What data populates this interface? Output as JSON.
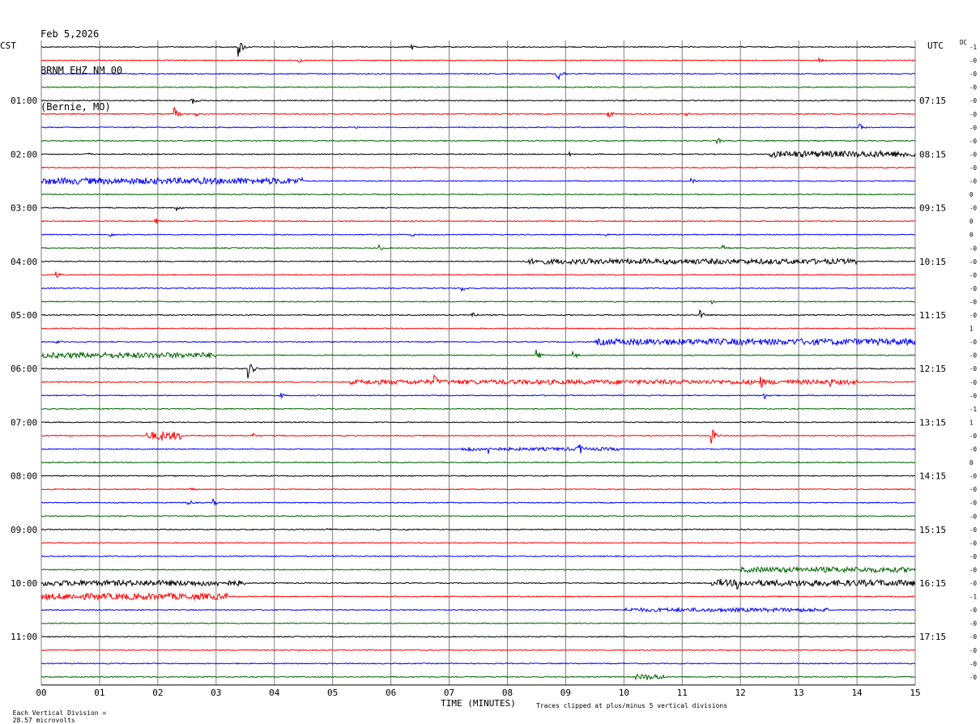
{
  "header": {
    "date": "Feb 5,2026",
    "station": "BRNM EHZ NM 00",
    "location": "(Bernie, MO)"
  },
  "axes": {
    "left_tz": "CST",
    "right_tz": "UTC",
    "dc_label": "DC",
    "xlabel": "TIME (MINUTES)",
    "x_ticks": [
      "00",
      "01",
      "02",
      "03",
      "04",
      "05",
      "06",
      "07",
      "08",
      "09",
      "10",
      "11",
      "12",
      "13",
      "14",
      "15"
    ],
    "left_hours": [
      "01:00",
      "02:00",
      "03:00",
      "04:00",
      "05:00",
      "06:00",
      "07:00",
      "08:00",
      "09:00",
      "10:00",
      "11:00"
    ],
    "right_hours": [
      "07:15",
      "08:15",
      "09:15",
      "10:15",
      "11:15",
      "12:15",
      "13:15",
      "14:15",
      "15:15",
      "16:15",
      "17:15"
    ]
  },
  "footer": {
    "scale_prefix": "Each Vertical Division =",
    "scale_value": "28.57 microvolts",
    "clip_note": "Traces clipped at plus/minus 5 vertical divisions"
  },
  "colors": {
    "black": "#000000",
    "red": "#ff0000",
    "blue": "#0000ff",
    "green": "#006400",
    "grid": "#808080"
  },
  "chart_data": {
    "type": "line",
    "subtype": "helicorder",
    "x_range_minutes": [
      0,
      15
    ],
    "trace_count": 48,
    "minutes_per_trace": 15,
    "color_cycle": [
      "black",
      "red",
      "blue",
      "green"
    ],
    "dc_offsets": [
      "-1",
      "-0",
      "-0",
      "-0",
      "-0",
      "-0",
      "-0",
      "-0",
      "-0",
      "-0",
      "-0",
      "0",
      "-0",
      "0",
      "0",
      "-0",
      "-0",
      "-0",
      "-0",
      "-0",
      "-0",
      "1",
      "-0",
      "-0",
      "-0",
      "-0",
      "-0",
      "-1",
      "1",
      "-0",
      "-0",
      "0",
      "-0",
      "-0",
      "-0",
      "-0",
      "-0",
      "-0",
      "-0",
      "-0",
      "-0",
      "-1",
      "-0",
      "-0",
      "-0",
      "-0",
      "-0",
      "-0"
    ],
    "events": [
      {
        "trace": 0,
        "minute": 3.38,
        "amp": 6
      },
      {
        "trace": 0,
        "minute": 6.35,
        "amp": 2
      },
      {
        "trace": 1,
        "minute": 4.42,
        "amp": 2
      },
      {
        "trace": 1,
        "minute": 13.35,
        "amp": 1.5
      },
      {
        "trace": 2,
        "minute": 8.85,
        "amp": 6
      },
      {
        "trace": 4,
        "minute": 2.58,
        "amp": 3
      },
      {
        "trace": 5,
        "minute": 2.28,
        "amp": 4
      },
      {
        "trace": 5,
        "minute": 2.65,
        "amp": 1.5
      },
      {
        "trace": 5,
        "minute": 9.72,
        "amp": 3
      },
      {
        "trace": 5,
        "minute": 11.05,
        "amp": 1.5
      },
      {
        "trace": 6,
        "minute": 5.38,
        "amp": 1
      },
      {
        "trace": 6,
        "minute": 14.05,
        "amp": 2
      },
      {
        "trace": 7,
        "minute": 11.6,
        "amp": 2
      },
      {
        "trace": 8,
        "minute": 0.75,
        "amp": 2
      },
      {
        "trace": 8,
        "minute": 9.05,
        "amp": 1.5
      },
      {
        "trace": 10,
        "minute": 11.15,
        "amp": 2
      },
      {
        "trace": 12,
        "minute": 2.33,
        "amp": 2
      },
      {
        "trace": 13,
        "minute": 1.95,
        "amp": 2.5
      },
      {
        "trace": 13,
        "minute": 6.35,
        "amp": 1
      },
      {
        "trace": 14,
        "minute": 1.17,
        "amp": 2
      },
      {
        "trace": 14,
        "minute": 6.35,
        "amp": 1.5
      },
      {
        "trace": 14,
        "minute": 9.65,
        "amp": 1.5
      },
      {
        "trace": 15,
        "minute": 5.78,
        "amp": 2.5
      },
      {
        "trace": 15,
        "minute": 11.7,
        "amp": 2
      },
      {
        "trace": 17,
        "minute": 0.25,
        "amp": 2
      },
      {
        "trace": 18,
        "minute": 7.22,
        "amp": 2
      },
      {
        "trace": 19,
        "minute": 11.5,
        "amp": 1.5
      },
      {
        "trace": 20,
        "minute": 7.38,
        "amp": 3
      },
      {
        "trace": 20,
        "minute": 11.3,
        "amp": 3
      },
      {
        "trace": 22,
        "minute": 0.25,
        "amp": 1.5
      },
      {
        "trace": 23,
        "minute": 8.5,
        "amp": 4
      },
      {
        "trace": 23,
        "minute": 9.12,
        "amp": 3
      },
      {
        "trace": 24,
        "minute": 3.55,
        "amp": 6
      },
      {
        "trace": 25,
        "minute": 6.75,
        "amp": 4
      },
      {
        "trace": 25,
        "minute": 12.35,
        "amp": 4
      },
      {
        "trace": 25,
        "minute": 13.55,
        "amp": 3
      },
      {
        "trace": 26,
        "minute": 4.1,
        "amp": 2
      },
      {
        "trace": 26,
        "minute": 12.4,
        "amp": 2.5
      },
      {
        "trace": 29,
        "minute": 2.05,
        "amp": 4
      },
      {
        "trace": 29,
        "minute": 3.6,
        "amp": 2.5
      },
      {
        "trace": 29,
        "minute": 11.5,
        "amp": 5
      },
      {
        "trace": 30,
        "minute": 7.3,
        "amp": 4
      },
      {
        "trace": 30,
        "minute": 7.68,
        "amp": 3
      },
      {
        "trace": 30,
        "minute": 9.2,
        "amp": 6
      },
      {
        "trace": 33,
        "minute": 2.55,
        "amp": 2
      },
      {
        "trace": 34,
        "minute": 2.5,
        "amp": 3
      },
      {
        "trace": 34,
        "minute": 2.95,
        "amp": 2
      },
      {
        "trace": 36,
        "minute": 4.9,
        "amp": 1
      },
      {
        "trace": 36,
        "minute": 6.25,
        "amp": 1
      },
      {
        "trace": 38,
        "minute": 5.0,
        "amp": 1
      },
      {
        "trace": 40,
        "minute": 1.8,
        "amp": 3
      },
      {
        "trace": 40,
        "minute": 2.6,
        "amp": 2
      },
      {
        "trace": 40,
        "minute": 11.65,
        "amp": 3
      },
      {
        "trace": 40,
        "minute": 11.95,
        "amp": 4
      },
      {
        "trace": 47,
        "minute": 10.4,
        "amp": 2
      }
    ],
    "noisy_segments": [
      {
        "trace": 8,
        "from": 12.5,
        "to": 15,
        "amp": 1.5
      },
      {
        "trace": 10,
        "from": 0,
        "to": 4.5,
        "amp": 1.5
      },
      {
        "trace": 16,
        "from": 8.3,
        "to": 14,
        "amp": 1.2
      },
      {
        "trace": 22,
        "from": 9.5,
        "to": 15,
        "amp": 1.5
      },
      {
        "trace": 23,
        "from": 0,
        "to": 3,
        "amp": 1.3
      },
      {
        "trace": 25,
        "from": 5.3,
        "to": 14,
        "amp": 1
      },
      {
        "trace": 29,
        "from": 1.8,
        "to": 2.4,
        "amp": 2
      },
      {
        "trace": 30,
        "from": 7.2,
        "to": 10,
        "amp": 0.6
      },
      {
        "trace": 39,
        "from": 12,
        "to": 15,
        "amp": 1.2
      },
      {
        "trace": 40,
        "from": 0,
        "to": 3.5,
        "amp": 1.3
      },
      {
        "trace": 40,
        "from": 11.5,
        "to": 15,
        "amp": 1.5
      },
      {
        "trace": 41,
        "from": 0,
        "to": 3.2,
        "amp": 1.5
      },
      {
        "trace": 42,
        "from": 10,
        "to": 13.5,
        "amp": 0.8
      },
      {
        "trace": 47,
        "from": 10.2,
        "to": 10.7,
        "amp": 1.2
      }
    ]
  }
}
